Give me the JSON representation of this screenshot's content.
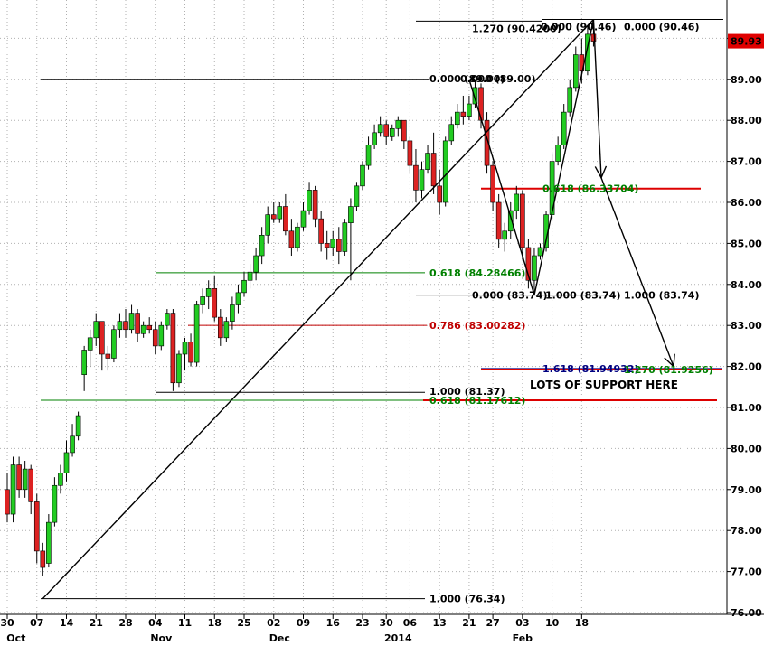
{
  "chart_data": {
    "type": "candlestick",
    "ylim": [
      76.0,
      90.8
    ],
    "grid": true,
    "y_ticks": [
      "76.00",
      "77.00",
      "78.00",
      "79.00",
      "80.00",
      "81.00",
      "82.00",
      "83.00",
      "84.00",
      "85.00",
      "86.00",
      "87.00",
      "88.00",
      "89.00",
      "90.00"
    ],
    "last_price": "89.93",
    "x_ticks": [
      {
        "label": "30",
        "i": 0
      },
      {
        "label": "07",
        "i": 5
      },
      {
        "label": "14",
        "i": 10
      },
      {
        "label": "21",
        "i": 15
      },
      {
        "label": "28",
        "i": 20
      },
      {
        "label": "04",
        "i": 25
      },
      {
        "label": "11",
        "i": 30
      },
      {
        "label": "18",
        "i": 35
      },
      {
        "label": "25",
        "i": 40
      },
      {
        "label": "02",
        "i": 45
      },
      {
        "label": "09",
        "i": 50
      },
      {
        "label": "16",
        "i": 55
      },
      {
        "label": "23",
        "i": 60
      },
      {
        "label": "30",
        "i": 64
      },
      {
        "label": "06",
        "i": 68
      },
      {
        "label": "13",
        "i": 73
      },
      {
        "label": "21",
        "i": 78
      },
      {
        "label": "27",
        "i": 82
      },
      {
        "label": "03",
        "i": 87
      },
      {
        "label": "10",
        "i": 92
      },
      {
        "label": "18",
        "i": 97
      }
    ],
    "month_labels": [
      {
        "label": "Oct",
        "i": 1.5
      },
      {
        "label": "Nov",
        "i": 26
      },
      {
        "label": "Dec",
        "i": 46
      },
      {
        "label": "2014",
        "i": 66
      },
      {
        "label": "Feb",
        "i": 87
      }
    ],
    "candles": [
      [
        79.0,
        79.4,
        78.2,
        78.4
      ],
      [
        78.4,
        79.8,
        78.2,
        79.6
      ],
      [
        79.6,
        79.8,
        78.8,
        79.0
      ],
      [
        79.0,
        79.7,
        78.8,
        79.5
      ],
      [
        79.5,
        79.6,
        78.4,
        78.7
      ],
      [
        78.7,
        78.9,
        77.2,
        77.5
      ],
      [
        77.5,
        77.7,
        76.9,
        77.1
      ],
      [
        77.2,
        78.4,
        77.1,
        78.2
      ],
      [
        78.2,
        79.3,
        78.1,
        79.1
      ],
      [
        79.1,
        79.6,
        78.9,
        79.4
      ],
      [
        79.4,
        80.2,
        79.2,
        79.9
      ],
      [
        79.9,
        80.6,
        79.8,
        80.3
      ],
      [
        80.3,
        80.9,
        80.2,
        80.8
      ],
      [
        81.8,
        82.5,
        81.4,
        82.4
      ],
      [
        82.4,
        82.9,
        82.0,
        82.7
      ],
      [
        82.7,
        83.3,
        82.5,
        83.1
      ],
      [
        83.1,
        83.0,
        81.9,
        82.3
      ],
      [
        82.3,
        82.5,
        81.9,
        82.2
      ],
      [
        82.2,
        83.0,
        82.1,
        82.9
      ],
      [
        82.9,
        83.3,
        82.7,
        83.1
      ],
      [
        83.1,
        83.4,
        82.7,
        82.9
      ],
      [
        82.9,
        83.5,
        82.8,
        83.3
      ],
      [
        83.3,
        83.4,
        82.6,
        82.8
      ],
      [
        82.8,
        83.1,
        82.7,
        83.0
      ],
      [
        83.0,
        83.2,
        82.8,
        82.9
      ],
      [
        82.9,
        83.1,
        82.3,
        82.5
      ],
      [
        82.5,
        83.1,
        82.4,
        83.0
      ],
      [
        83.0,
        83.4,
        82.9,
        83.3
      ],
      [
        83.3,
        83.4,
        81.4,
        81.6
      ],
      [
        81.6,
        82.4,
        81.5,
        82.3
      ],
      [
        82.3,
        82.7,
        81.9,
        82.6
      ],
      [
        82.6,
        82.8,
        82.0,
        82.1
      ],
      [
        82.1,
        83.6,
        82.0,
        83.5
      ],
      [
        83.5,
        83.9,
        83.3,
        83.7
      ],
      [
        83.7,
        84.1,
        83.4,
        83.9
      ],
      [
        83.9,
        84.2,
        83.1,
        83.2
      ],
      [
        83.2,
        83.4,
        82.5,
        82.7
      ],
      [
        82.7,
        83.2,
        82.6,
        83.1
      ],
      [
        83.1,
        83.7,
        82.9,
        83.5
      ],
      [
        83.5,
        84.0,
        83.3,
        83.8
      ],
      [
        83.8,
        84.3,
        83.7,
        84.1
      ],
      [
        84.1,
        84.5,
        83.9,
        84.3
      ],
      [
        84.3,
        84.9,
        84.1,
        84.7
      ],
      [
        84.7,
        85.4,
        84.5,
        85.2
      ],
      [
        85.2,
        85.9,
        85.0,
        85.7
      ],
      [
        85.7,
        86.0,
        85.5,
        85.6
      ],
      [
        85.6,
        86.0,
        85.5,
        85.9
      ],
      [
        85.9,
        86.2,
        85.2,
        85.3
      ],
      [
        85.3,
        85.6,
        84.7,
        84.9
      ],
      [
        84.9,
        85.5,
        84.8,
        85.4
      ],
      [
        85.4,
        86.0,
        85.3,
        85.8
      ],
      [
        85.8,
        86.5,
        85.7,
        86.3
      ],
      [
        86.3,
        86.4,
        85.4,
        85.6
      ],
      [
        85.6,
        85.8,
        84.8,
        85.0
      ],
      [
        85.0,
        85.3,
        84.6,
        84.9
      ],
      [
        84.9,
        85.3,
        84.7,
        85.1
      ],
      [
        85.1,
        85.4,
        84.5,
        84.8
      ],
      [
        84.8,
        85.6,
        84.7,
        85.5
      ],
      [
        85.5,
        86.1,
        84.1,
        85.9
      ],
      [
        85.9,
        86.5,
        85.8,
        86.4
      ],
      [
        86.4,
        87.0,
        86.3,
        86.9
      ],
      [
        86.9,
        87.6,
        86.8,
        87.4
      ],
      [
        87.4,
        87.9,
        87.3,
        87.7
      ],
      [
        87.7,
        88.1,
        87.6,
        87.9
      ],
      [
        87.9,
        88.0,
        87.4,
        87.6
      ],
      [
        87.6,
        87.9,
        87.5,
        87.8
      ],
      [
        87.8,
        88.1,
        87.6,
        88.0
      ],
      [
        88.0,
        88.0,
        87.3,
        87.5
      ],
      [
        87.5,
        87.6,
        86.7,
        86.9
      ],
      [
        86.9,
        87.3,
        86.0,
        86.3
      ],
      [
        86.3,
        87.0,
        86.1,
        86.8
      ],
      [
        86.8,
        87.4,
        86.7,
        87.2
      ],
      [
        87.2,
        87.7,
        86.2,
        86.4
      ],
      [
        86.4,
        86.8,
        85.7,
        86.0
      ],
      [
        86.0,
        87.6,
        85.9,
        87.5
      ],
      [
        87.5,
        88.1,
        87.4,
        87.9
      ],
      [
        87.9,
        88.4,
        87.8,
        88.2
      ],
      [
        88.2,
        88.6,
        87.9,
        88.1
      ],
      [
        88.1,
        88.6,
        88.0,
        88.4
      ],
      [
        88.4,
        89.0,
        88.3,
        88.8
      ],
      [
        88.8,
        88.9,
        87.8,
        88.0
      ],
      [
        88.0,
        88.2,
        86.7,
        86.9
      ],
      [
        86.9,
        87.0,
        85.8,
        86.0
      ],
      [
        86.0,
        86.2,
        84.9,
        85.1
      ],
      [
        85.1,
        85.5,
        84.8,
        85.3
      ],
      [
        85.3,
        86.0,
        85.1,
        85.8
      ],
      [
        85.8,
        86.4,
        85.6,
        86.2
      ],
      [
        86.2,
        86.3,
        84.6,
        84.9
      ],
      [
        84.9,
        85.1,
        83.9,
        84.1
      ],
      [
        84.1,
        84.9,
        83.74,
        84.7
      ],
      [
        84.7,
        85.0,
        84.6,
        84.9
      ],
      [
        84.9,
        85.8,
        84.8,
        85.7
      ],
      [
        85.7,
        87.2,
        85.6,
        87.0
      ],
      [
        87.0,
        87.6,
        86.9,
        87.4
      ],
      [
        87.4,
        88.4,
        87.3,
        88.2
      ],
      [
        88.2,
        89.0,
        88.1,
        88.8
      ],
      [
        88.8,
        89.8,
        88.7,
        89.6
      ],
      [
        89.6,
        90.0,
        88.9,
        89.2
      ],
      [
        89.2,
        90.3,
        89.1,
        90.1
      ],
      [
        90.1,
        90.46,
        89.8,
        89.93
      ]
    ],
    "fib_levels": [
      {
        "label": "1.270 (90.4200)",
        "value": 90.42,
        "color": "#000000"
      },
      {
        "label": "0.000 (90.46)",
        "value": 90.46,
        "color": "#000000"
      },
      {
        "label": "0.000 (90.46)",
        "value": 90.46,
        "color": "#000000"
      },
      {
        "label": "0.000 (89.00)",
        "value": 89.0,
        "color": "#000000"
      },
      {
        "label": "0.000 (89.00)",
        "value": 89.0,
        "color": "#000000"
      },
      {
        "label": "0.618 (86.33704)",
        "value": 86.33704,
        "color": "#008000"
      },
      {
        "label": "0.618 (84.28466)",
        "value": 84.28466,
        "color": "#008000"
      },
      {
        "label": "0.000 (83.74)",
        "value": 83.74,
        "color": "#000000"
      },
      {
        "label": "1.000 (83.74)",
        "value": 83.74,
        "color": "#000000"
      },
      {
        "label": "1.000 (83.74)",
        "value": 83.74,
        "color": "#000000"
      },
      {
        "label": "0.786 (83.00282)",
        "value": 83.00282,
        "color": "#c00000"
      },
      {
        "label": "1.618 (81.94932)",
        "value": 81.94932,
        "color": "#000080"
      },
      {
        "label": "1.270 (81.9256)",
        "value": 81.9256,
        "color": "#008000"
      },
      {
        "label": "1.000 (81.37)",
        "value": 81.37,
        "color": "#000000"
      },
      {
        "label": "0.618 (81.17612)",
        "value": 81.17612,
        "color": "#008000"
      },
      {
        "label": "1.000 (76.34)",
        "value": 76.34,
        "color": "#000000"
      }
    ],
    "annotation": "LOTS OF SUPPORT HERE"
  }
}
